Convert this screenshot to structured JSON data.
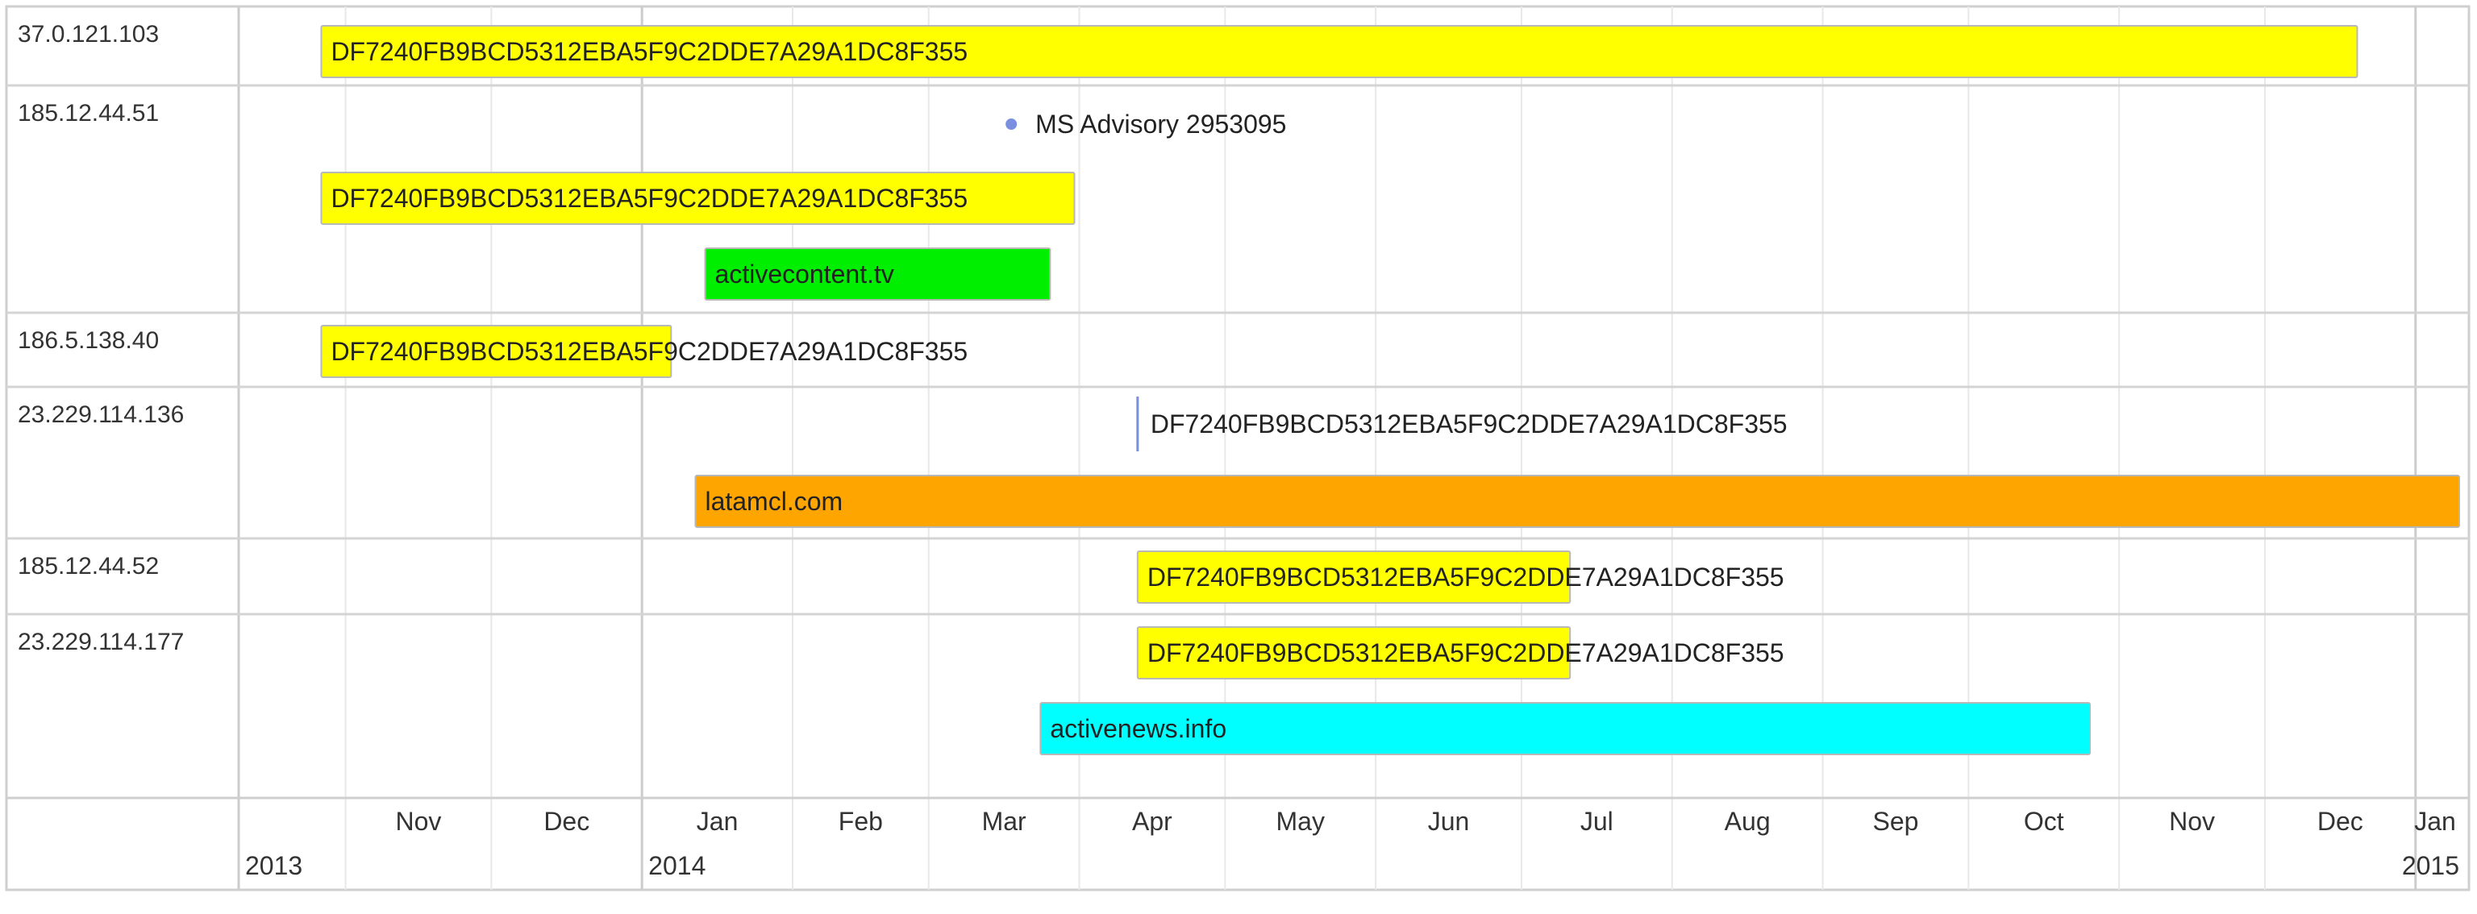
{
  "chart_data": {
    "type": "timeline",
    "title": "",
    "x_axis": {
      "type": "date",
      "range": [
        "2013-10-10",
        "2015-01-10"
      ],
      "months": [
        {
          "date": "2013-11-01",
          "label": "Nov"
        },
        {
          "date": "2013-12-01",
          "label": "Dec"
        },
        {
          "date": "2014-01-01",
          "label": "Jan"
        },
        {
          "date": "2014-02-01",
          "label": "Feb"
        },
        {
          "date": "2014-03-01",
          "label": "Mar"
        },
        {
          "date": "2014-04-01",
          "label": "Apr"
        },
        {
          "date": "2014-05-01",
          "label": "May"
        },
        {
          "date": "2014-06-01",
          "label": "Jun"
        },
        {
          "date": "2014-07-01",
          "label": "Jul"
        },
        {
          "date": "2014-08-01",
          "label": "Aug"
        },
        {
          "date": "2014-09-01",
          "label": "Sep"
        },
        {
          "date": "2014-10-01",
          "label": "Oct"
        },
        {
          "date": "2014-11-01",
          "label": "Nov"
        },
        {
          "date": "2014-12-01",
          "label": "Dec"
        },
        {
          "date": "2015-01-01",
          "label": "Jan"
        }
      ],
      "years": [
        {
          "date": "2013-10-10",
          "label": "2013"
        },
        {
          "date": "2014-01-01",
          "label": "2014"
        },
        {
          "date": "2015-01-10",
          "label": "2015"
        }
      ]
    },
    "rows": [
      {
        "label": "37.0.121.103",
        "items": [
          {
            "type": "range",
            "start": "2013-10-27",
            "end": "2014-12-20",
            "label": "DF7240FB9BCD5312EBA5F9C2DDE7A29A1DC8F355",
            "color": "#ffff00"
          }
        ]
      },
      {
        "label": "185.12.44.51",
        "items": [
          {
            "type": "point",
            "date": "2014-03-18",
            "label": "MS Advisory 2953095",
            "color": "#7b8fe0"
          },
          {
            "type": "range",
            "start": "2013-10-27",
            "end": "2014-03-31",
            "label": "DF7240FB9BCD5312EBA5F9C2DDE7A29A1DC8F355",
            "color": "#ffff00"
          },
          {
            "type": "range",
            "start": "2014-01-14",
            "end": "2014-03-26",
            "label": "activecontent.tv",
            "color": "#00ee00"
          }
        ]
      },
      {
        "label": "186.5.138.40",
        "items": [
          {
            "type": "range",
            "start": "2013-10-27",
            "end": "2014-01-07",
            "label": "DF7240FB9BCD5312EBA5F9C2DDE7A29A1DC8F355",
            "color": "#ffff00"
          }
        ]
      },
      {
        "label": "23.229.114.136",
        "items": [
          {
            "type": "marker",
            "date": "2014-04-13",
            "label": "DF7240FB9BCD5312EBA5F9C2DDE7A29A1DC8F355",
            "color": "#7b8fe0"
          },
          {
            "type": "range",
            "start": "2014-01-12",
            "end": "2015-01-10",
            "label": "latamcl.com",
            "color": "#ffa500"
          }
        ]
      },
      {
        "label": "185.12.44.52",
        "items": [
          {
            "type": "range",
            "start": "2014-04-13",
            "end": "2014-07-11",
            "label": "DF7240FB9BCD5312EBA5F9C2DDE7A29A1DC8F355",
            "color": "#ffff00"
          }
        ]
      },
      {
        "label": "23.229.114.177",
        "items": [
          {
            "type": "range",
            "start": "2014-04-13",
            "end": "2014-07-11",
            "label": "DF7240FB9BCD5312EBA5F9C2DDE7A29A1DC8F355",
            "color": "#ffff00"
          },
          {
            "type": "range",
            "start": "2014-03-24",
            "end": "2014-10-26",
            "label": "activenews.info",
            "color": "#00ffff"
          }
        ]
      }
    ],
    "grid": true,
    "legend": "none"
  }
}
